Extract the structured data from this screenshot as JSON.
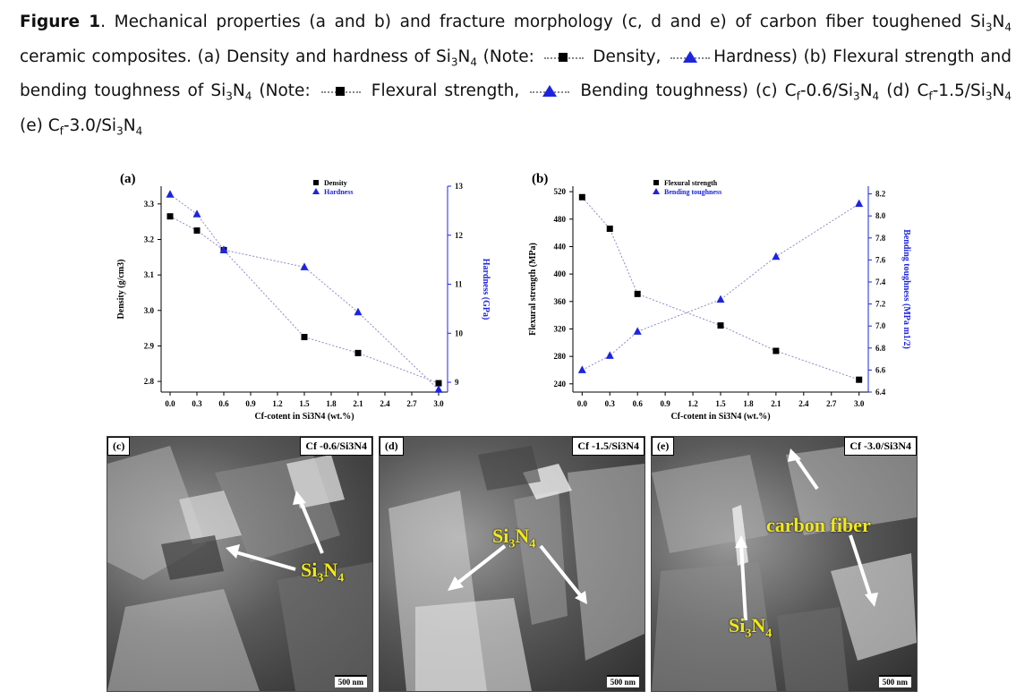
{
  "caption": {
    "label": "Figure 1",
    "t1": ". Mechanical properties (a and b) and fracture morphology (c, d and e) of carbon fiber toughened Si",
    "s3": "3",
    "n": "N",
    "s4": "4",
    "t2": " ceramic composites. (a) Density and hardness of Si",
    "t3": " (Note: ",
    "density": "Density,",
    "hardness": "Hardness",
    "t4": ") (b) Flexural strength and bending toughness of Si",
    "flex": "Flexural strength,",
    "bend": "Bending toughness",
    "t5": ") (c) C",
    "f": "f",
    "c06": "-0.6/Si",
    "d": " (d) C",
    "c15": "-1.5/Si",
    "e": " (e) C",
    "c30": "-3.0/Si"
  },
  "colors": {
    "series_square": "#000000",
    "series_triangle": "#1d24e0",
    "connector": "#8c8ccc",
    "label_yellow": "#f2e81c"
  },
  "chart_data": [
    {
      "type": "scatter",
      "panel": "(a)",
      "xlabel": "Cf-cotent in Si3N4 (wt.%)",
      "xticks": [
        "0.0",
        "0.3",
        "0.6",
        "0.9",
        "1.2",
        "1.5",
        "1.8",
        "2.1",
        "2.4",
        "2.7",
        "3.0"
      ],
      "ylabel": "Density (g/cm3)",
      "ylabel2": "Hardness (GPa)",
      "yticks": [
        "2.8",
        "2.9",
        "3.0",
        "3.1",
        "3.2",
        "3.3"
      ],
      "yticks2": [
        "9",
        "10",
        "11",
        "12",
        "13"
      ],
      "ylim": [
        2.77,
        3.35
      ],
      "ylim2": [
        8.8,
        13
      ],
      "xlim": [
        -0.1,
        3.1
      ],
      "legend": [
        "Density",
        "Hardness"
      ],
      "series": [
        {
          "name": "Density",
          "axis": "left",
          "marker": "square",
          "x": [
            0.0,
            0.3,
            0.6,
            1.5,
            2.1,
            3.0
          ],
          "values": [
            3.265,
            3.225,
            3.17,
            2.925,
            2.88,
            2.795
          ]
        },
        {
          "name": "Hardness",
          "axis": "right",
          "marker": "triangle",
          "x": [
            0.0,
            0.3,
            0.6,
            1.5,
            2.1,
            3.0
          ],
          "values": [
            12.83,
            12.43,
            11.7,
            11.35,
            10.43,
            8.85
          ]
        }
      ]
    },
    {
      "type": "scatter",
      "panel": "(b)",
      "xlabel": "Cf-cotent in Si3N4 (wt.%)",
      "xticks": [
        "0.0",
        "0.3",
        "0.6",
        "0.9",
        "1.2",
        "1.5",
        "1.8",
        "2.1",
        "2.4",
        "2.7",
        "3.0"
      ],
      "ylabel": "Flexural strength (MPa)",
      "ylabel2": "Bending toughness (MPa m1/2)",
      "yticks": [
        "240",
        "280",
        "320",
        "360",
        "400",
        "440",
        "480",
        "520"
      ],
      "yticks2": [
        "6.4",
        "6.6",
        "6.8",
        "7.0",
        "7.2",
        "7.4",
        "7.6",
        "7.8",
        "8.0",
        "8.2"
      ],
      "ylim": [
        228,
        528
      ],
      "ylim2": [
        6.4,
        8.27
      ],
      "xlim": [
        -0.1,
        3.1
      ],
      "legend": [
        "Flexural strength",
        "Bending toughness"
      ],
      "series": [
        {
          "name": "Flexural strength",
          "axis": "left",
          "marker": "square",
          "x": [
            0.0,
            0.3,
            0.6,
            1.5,
            2.1,
            3.0
          ],
          "values": [
            512,
            466,
            371,
            325,
            288,
            246
          ]
        },
        {
          "name": "Bending toughness",
          "axis": "right",
          "marker": "triangle",
          "x": [
            0.0,
            0.3,
            0.6,
            1.5,
            2.1,
            3.0
          ],
          "values": [
            6.6,
            6.73,
            6.95,
            7.24,
            7.63,
            8.11
          ]
        }
      ]
    }
  ],
  "sem": {
    "c": {
      "panel": "(c)",
      "title": "Cf -0.6/Si3N4",
      "label": "Si",
      "label_s1": "3",
      "label_n": "N",
      "label_s2": "4",
      "scale": "500 nm"
    },
    "d": {
      "panel": "(d)",
      "title": "Cf -1.5/Si3N4",
      "label": "Si",
      "label_s1": "3",
      "label_n": "N",
      "label_s2": "4",
      "scale": "500 nm"
    },
    "e": {
      "panel": "(e)",
      "title": "Cf -3.0/Si3N4",
      "label": "Si",
      "label_s1": "3",
      "label_n": "N",
      "label_s2": "4",
      "label2": "carbon fiber",
      "scale": "500 nm"
    }
  }
}
